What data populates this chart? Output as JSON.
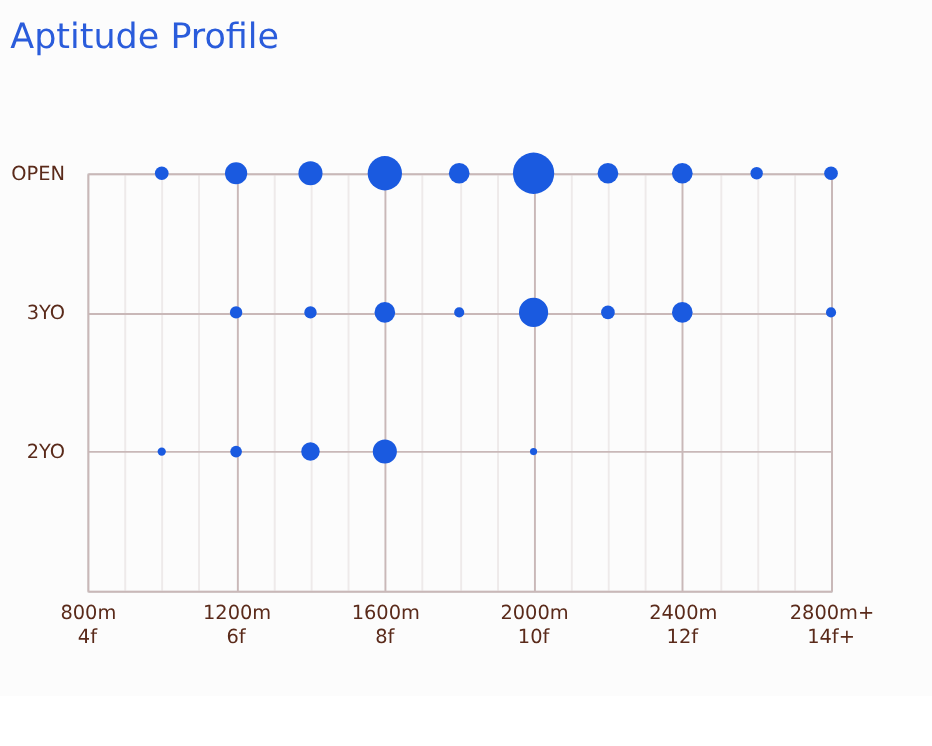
{
  "chart_data": {
    "type": "bubble",
    "title": "Aptitude Profile",
    "orientation": "horizontal",
    "categories": [
      "OPEN",
      "3YO",
      "2YO"
    ],
    "xlim": [
      800,
      2800
    ],
    "xticks": [
      {
        "value": 800,
        "label": "800m"
      },
      {
        "value": 900,
        "label": null
      },
      {
        "value": 1000,
        "label": null
      },
      {
        "value": 1100,
        "label": null
      },
      {
        "value": 1200,
        "label": "1200m"
      },
      {
        "value": 1300,
        "label": null
      },
      {
        "value": 1400,
        "label": null
      },
      {
        "value": 1500,
        "label": null
      },
      {
        "value": 1600,
        "label": "1600m"
      },
      {
        "value": 1700,
        "label": null
      },
      {
        "value": 1800,
        "label": null
      },
      {
        "value": 1900,
        "label": null
      },
      {
        "value": 2000,
        "label": "2000m"
      },
      {
        "value": 2100,
        "label": null
      },
      {
        "value": 2200,
        "label": null
      },
      {
        "value": 2300,
        "label": null
      },
      {
        "value": 2400,
        "label": "2400m"
      },
      {
        "value": 2500,
        "label": null
      },
      {
        "value": 2600,
        "label": null
      },
      {
        "value": 2700,
        "label": null
      },
      {
        "value": 2800,
        "label": "2800m+"
      }
    ],
    "x2lim": [
      4,
      14
    ],
    "x2ticks": [
      {
        "value": 4,
        "label": "4f"
      },
      {
        "value": 6,
        "label": "6f"
      },
      {
        "value": 8,
        "label": "8f"
      },
      {
        "value": 10,
        "label": "10f"
      },
      {
        "value": 12,
        "label": "12f"
      },
      {
        "value": 14,
        "label": "14f+"
      }
    ],
    "grid": true,
    "legend": false,
    "series": [
      {
        "color": "#1a5ae0",
        "x": [
          "OPEN",
          "OPEN",
          "OPEN",
          "OPEN",
          "OPEN",
          "OPEN",
          "OPEN",
          "OPEN",
          "OPEN",
          "OPEN"
        ],
        "values": [
          1000,
          1200,
          1400,
          1600,
          1800,
          2000,
          2200,
          2400,
          2600,
          2800
        ],
        "sizes": [
          0.11,
          0.29,
          0.34,
          0.69,
          0.25,
          1,
          0.25,
          0.25,
          0.09,
          0.11
        ]
      },
      {
        "color": "#1a5ae0",
        "x": [
          "3YO",
          "3YO",
          "3YO",
          "3YO",
          "3YO",
          "3YO",
          "3YO",
          "3YO"
        ],
        "values": [
          1200,
          1400,
          1600,
          1800,
          2000,
          2200,
          2400,
          2800
        ],
        "sizes": [
          0.09,
          0.09,
          0.25,
          0.06,
          0.5,
          0.11,
          0.25,
          0.06
        ]
      },
      {
        "color": "#1a5ae0",
        "x": [
          "2YO",
          "2YO",
          "2YO",
          "2YO",
          "2YO"
        ],
        "values": [
          1000,
          1200,
          1400,
          1600,
          2000
        ],
        "sizes": [
          0.04,
          0.08,
          0.2,
          0.34,
          0.03
        ]
      }
    ]
  }
}
